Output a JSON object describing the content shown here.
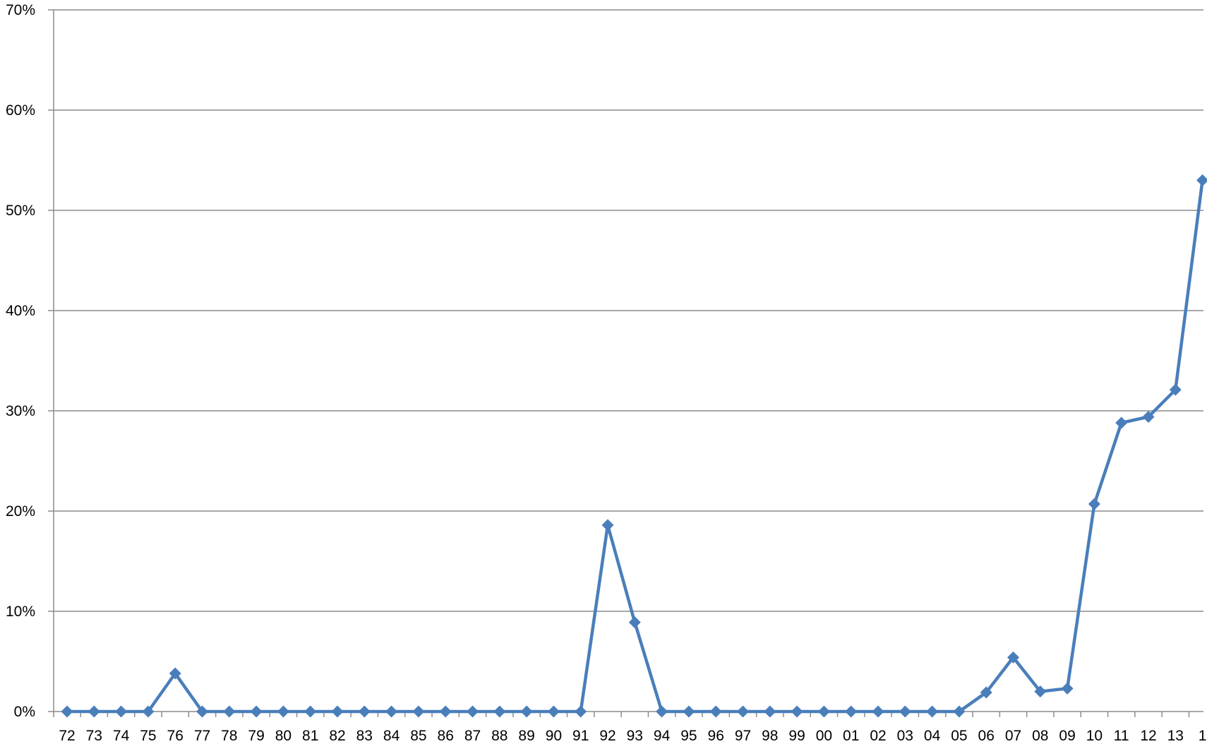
{
  "chart_data": {
    "type": "line",
    "categories": [
      "72",
      "73",
      "74",
      "75",
      "76",
      "77",
      "78",
      "79",
      "80",
      "81",
      "82",
      "83",
      "84",
      "85",
      "86",
      "87",
      "88",
      "89",
      "90",
      "91",
      "92",
      "93",
      "94",
      "95",
      "96",
      "97",
      "98",
      "99",
      "00",
      "01",
      "02",
      "03",
      "04",
      "05",
      "06",
      "07",
      "08",
      "09",
      "10",
      "11",
      "12",
      "13",
      "1"
    ],
    "series": [
      {
        "values": [
          0,
          0,
          0,
          0,
          3.8,
          0,
          0,
          0,
          0,
          0,
          0,
          0,
          0,
          0,
          0,
          0,
          0,
          0,
          0,
          0,
          18.6,
          8.9,
          0,
          0,
          0,
          0,
          0,
          0,
          0,
          0,
          0,
          0,
          0,
          0,
          1.9,
          5.4,
          2.0,
          2.3,
          20.7,
          28.8,
          29.4,
          32.1,
          53.0
        ]
      }
    ],
    "ylim": [
      0,
      70
    ],
    "yticks": [
      "0%",
      "10%",
      "20%",
      "30%",
      "40%",
      "50%",
      "60%",
      "70%"
    ],
    "grid": true,
    "marker": "diamond",
    "colors": {
      "series": "#4a7ebb",
      "grid": "#8c8c8c",
      "axis": "#8c8c8c"
    }
  }
}
